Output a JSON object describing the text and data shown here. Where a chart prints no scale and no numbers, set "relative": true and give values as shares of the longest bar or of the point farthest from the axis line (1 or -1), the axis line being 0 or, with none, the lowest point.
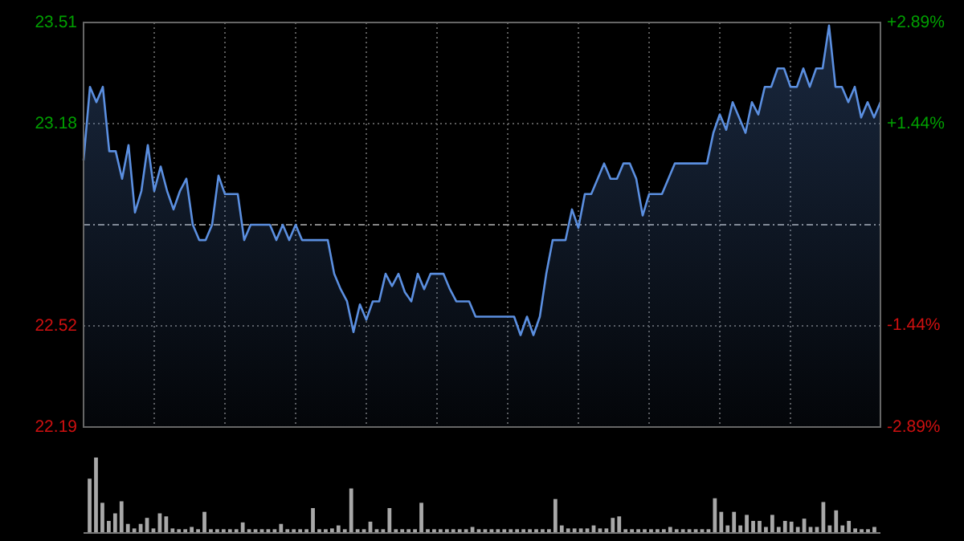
{
  "chart_data": [
    {
      "type": "area",
      "categories": [
        null,
        null,
        null,
        null,
        null,
        null,
        null,
        null,
        null,
        null,
        null,
        null,
        null,
        null,
        null,
        null,
        null,
        null,
        null,
        null,
        null,
        null,
        null,
        null,
        null,
        null,
        null,
        null,
        null,
        null,
        null,
        null,
        null,
        null,
        null,
        null,
        null,
        null,
        null,
        null,
        null,
        null,
        null,
        null,
        null,
        null,
        null,
        null,
        null,
        null,
        null,
        null,
        null,
        null,
        null,
        null,
        null,
        null,
        null,
        null,
        null,
        null,
        null,
        null,
        null,
        null,
        null,
        null,
        null,
        null,
        null,
        null,
        null,
        null,
        null,
        null,
        null,
        null,
        null,
        null,
        null,
        null,
        null,
        null,
        null,
        null,
        null,
        null,
        null,
        null,
        null,
        null,
        null,
        null,
        null,
        null,
        null,
        null,
        null,
        null,
        null,
        null,
        null,
        null,
        null,
        null,
        null,
        null,
        null,
        null,
        null,
        null,
        null,
        null,
        null,
        null,
        null,
        null,
        null,
        null,
        null,
        null,
        null,
        null,
        null
      ],
      "series": [
        {
          "color": "#5b8fe0",
          "values": [
            23.06,
            23.3,
            23.25,
            23.3,
            23.09,
            23.09,
            23.0,
            23.11,
            22.89,
            22.96,
            23.11,
            22.96,
            23.04,
            22.96,
            22.9,
            22.96,
            23.0,
            22.85,
            22.8,
            22.8,
            22.85,
            23.01,
            22.95,
            22.95,
            22.95,
            22.8,
            22.85,
            22.85,
            22.85,
            22.85,
            22.8,
            22.85,
            22.8,
            22.85,
            22.8,
            22.8,
            22.8,
            22.8,
            22.8,
            22.69,
            22.64,
            22.6,
            22.5,
            22.59,
            22.54,
            22.6,
            22.6,
            22.69,
            22.65,
            22.69,
            22.63,
            22.6,
            22.69,
            22.64,
            22.69,
            22.69,
            22.69,
            22.64,
            22.6,
            22.6,
            22.6,
            22.55,
            22.55,
            22.55,
            22.55,
            22.55,
            22.55,
            22.55,
            22.49,
            22.55,
            22.49,
            22.55,
            22.69,
            22.8,
            22.8,
            22.8,
            22.9,
            22.84,
            22.95,
            22.95,
            23.0,
            23.05,
            23.0,
            23.0,
            23.05,
            23.05,
            23.0,
            22.88,
            22.95,
            22.95,
            22.95,
            23.0,
            23.05,
            23.05,
            23.05,
            23.05,
            23.05,
            23.05,
            23.15,
            23.21,
            23.16,
            23.25,
            23.2,
            23.15,
            23.25,
            23.21,
            23.3,
            23.3,
            23.36,
            23.36,
            23.3,
            23.3,
            23.36,
            23.3,
            23.36,
            23.36,
            23.5,
            23.3,
            23.3,
            23.25,
            23.3,
            23.2,
            23.25,
            23.2,
            23.25
          ]
        }
      ],
      "ylim": [
        22.19,
        23.51
      ],
      "yticks": [
        22.19,
        22.52,
        23.18,
        23.51
      ],
      "y2lim": [
        -2.89,
        2.89
      ],
      "y2ticks": [
        {
          "value": -2.89,
          "label": "-2.89%"
        },
        {
          "value": -1.44,
          "label": "-1.44%"
        },
        {
          "value": 1.44,
          "label": "+1.44%"
        },
        {
          "value": 2.89,
          "label": "+2.89%"
        }
      ],
      "ref_lines": [
        {
          "axis": "y",
          "value": 22.85,
          "line_style": "dashed"
        }
      ],
      "grid": true
    },
    {
      "type": "bar",
      "relative": true,
      "color": "#a8a8a8",
      "categories": [
        null,
        null,
        null,
        null,
        null,
        null,
        null,
        null,
        null,
        null,
        null,
        null,
        null,
        null,
        null,
        null,
        null,
        null,
        null,
        null,
        null,
        null,
        null,
        null,
        null,
        null,
        null,
        null,
        null,
        null,
        null,
        null,
        null,
        null,
        null,
        null,
        null,
        null,
        null,
        null,
        null,
        null,
        null,
        null,
        null,
        null,
        null,
        null,
        null,
        null,
        null,
        null,
        null,
        null,
        null,
        null,
        null,
        null,
        null,
        null,
        null,
        null,
        null,
        null,
        null,
        null,
        null,
        null,
        null,
        null,
        null,
        null,
        null,
        null,
        null,
        null,
        null,
        null,
        null,
        null,
        null,
        null,
        null,
        null,
        null,
        null,
        null,
        null,
        null,
        null,
        null,
        null,
        null,
        null,
        null,
        null,
        null,
        null,
        null,
        null,
        null,
        null,
        null,
        null,
        null,
        null,
        null,
        null,
        null,
        null,
        null,
        null,
        null,
        null,
        null,
        null,
        null,
        null,
        null,
        null,
        null,
        null,
        null,
        null
      ],
      "values": [
        0.72,
        1,
        0.4,
        0.16,
        0.26,
        0.42,
        0.12,
        0.06,
        0.12,
        0.2,
        0.06,
        0.26,
        0.22,
        0.06,
        0.05,
        0.05,
        0.08,
        0.05,
        0.28,
        0.05,
        0.05,
        0.05,
        0.05,
        0.05,
        0.14,
        0.05,
        0.05,
        0.05,
        0.05,
        0.05,
        0.12,
        0.05,
        0.05,
        0.05,
        0.05,
        0.33,
        0.05,
        0.05,
        0.06,
        0.1,
        0.05,
        0.59,
        0.05,
        0.05,
        0.15,
        0.05,
        0.05,
        0.33,
        0.05,
        0.05,
        0.05,
        0.05,
        0.4,
        0.05,
        0.05,
        0.05,
        0.05,
        0.05,
        0.05,
        0.05,
        0.08,
        0.05,
        0.05,
        0.05,
        0.05,
        0.05,
        0.05,
        0.05,
        0.05,
        0.05,
        0.05,
        0.05,
        0.05,
        0.45,
        0.1,
        0.06,
        0.06,
        0.06,
        0.06,
        0.1,
        0.06,
        0.06,
        0.2,
        0.22,
        0.05,
        0.05,
        0.05,
        0.05,
        0.05,
        0.05,
        0.05,
        0.08,
        0.05,
        0.05,
        0.05,
        0.05,
        0.05,
        0.05,
        0.46,
        0.28,
        0.1,
        0.28,
        0.1,
        0.24,
        0.16,
        0.16,
        0.08,
        0.24,
        0.08,
        0.16,
        0.15,
        0.08,
        0.19,
        0.08,
        0.08,
        0.41,
        0.1,
        0.3,
        0.1,
        0.16,
        0.06,
        0.05,
        0.05,
        0.08
      ]
    }
  ]
}
